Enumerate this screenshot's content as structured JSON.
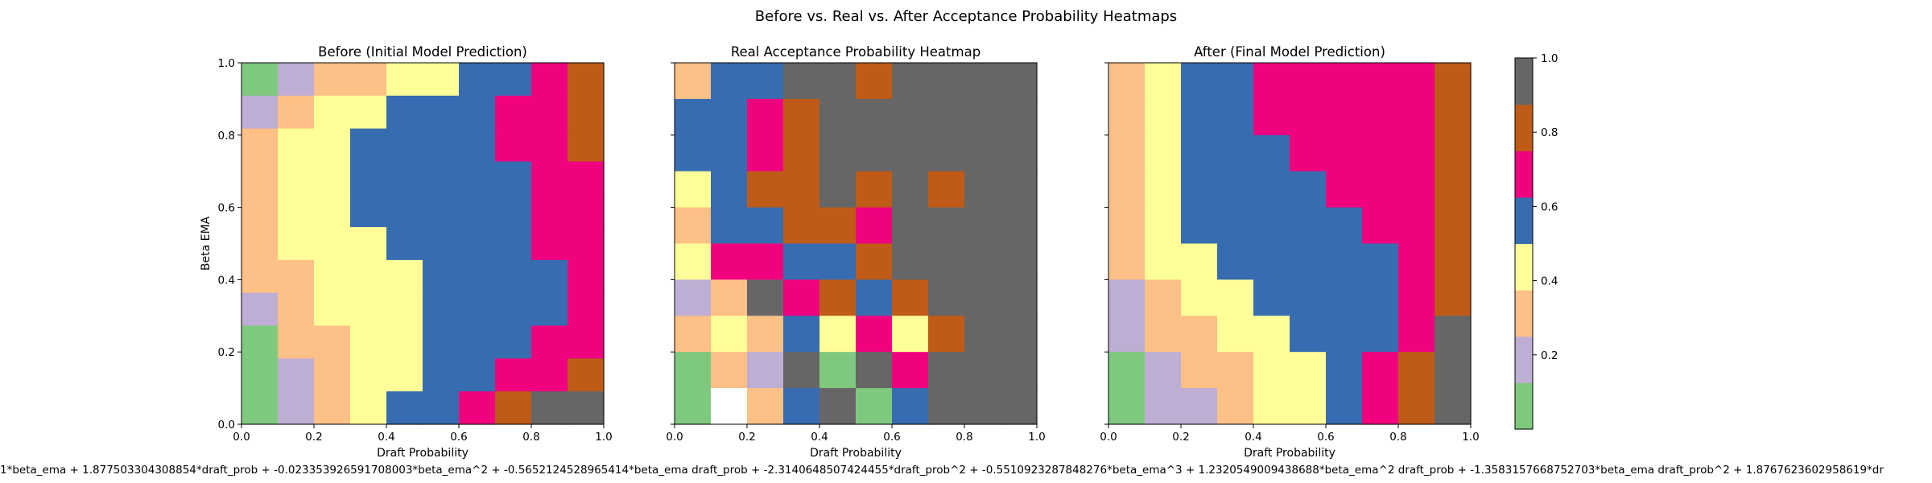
{
  "figure": {
    "title": "Before vs. Real vs. After Acceptance Probability Heatmaps",
    "formula": "1*beta_ema + 1.877503304308854*draft_prob + -0.023353926591708003*beta_ema^2 + -0.5652124528965414*beta_ema draft_prob + -2.3140648507424455*draft_prob^2 + -0.5510923287848276*beta_ema^3 + 1.2320549009438688*beta_ema^2 draft_prob + -1.3583157668752703*beta_ema draft_prob^2 + 1.8767623602958619*dr"
  },
  "colorbar": {
    "colors": [
      "#7fc97f",
      "#beaed4",
      "#fdc086",
      "#ffff99",
      "#386cb0",
      "#f0027f",
      "#bf5b17",
      "#666666"
    ],
    "ticks": [
      "0.2",
      "0.4",
      "0.6",
      "0.8",
      "1.0"
    ],
    "tick_values": [
      0.2,
      0.4,
      0.6,
      0.8,
      1.0
    ],
    "range": [
      0.0,
      1.0
    ]
  },
  "chart_data": [
    {
      "type": "heatmap",
      "title": "Before (Initial Model Prediction)",
      "xlabel": "Draft Probability",
      "ylabel": "Beta EMA",
      "xlim": [
        0,
        1
      ],
      "ylim": [
        0,
        1
      ],
      "xticks": [
        "0.0",
        "0.2",
        "0.4",
        "0.6",
        "0.8",
        "1.0"
      ],
      "yticks": [
        "0.0",
        "0.2",
        "0.4",
        "0.6",
        "0.8",
        "1.0"
      ],
      "rows_top_to_bottom": [
        [
          0,
          1,
          2,
          2,
          3,
          3,
          4,
          4,
          5,
          6
        ],
        [
          1,
          2,
          3,
          3,
          4,
          4,
          4,
          5,
          5,
          6
        ],
        [
          2,
          3,
          3,
          4,
          4,
          4,
          4,
          5,
          5,
          6
        ],
        [
          2,
          3,
          3,
          4,
          4,
          4,
          4,
          4,
          5,
          5
        ],
        [
          2,
          3,
          3,
          4,
          4,
          4,
          4,
          4,
          5,
          5
        ],
        [
          2,
          3,
          3,
          3,
          4,
          4,
          4,
          4,
          5,
          5
        ],
        [
          2,
          2,
          3,
          3,
          3,
          4,
          4,
          4,
          4,
          5
        ],
        [
          1,
          2,
          3,
          3,
          3,
          4,
          4,
          4,
          4,
          5
        ],
        [
          0,
          2,
          2,
          3,
          3,
          4,
          4,
          4,
          5,
          5
        ],
        [
          0,
          1,
          2,
          3,
          3,
          4,
          4,
          5,
          5,
          6
        ],
        [
          0,
          1,
          2,
          3,
          4,
          4,
          5,
          6,
          7,
          7
        ]
      ],
      "cell_value_scale": "class index 0-7 mapped to colorbar bins of 0.125"
    },
    {
      "type": "heatmap",
      "title": "Real Acceptance Probability Heatmap",
      "xlabel": "Draft Probability",
      "ylabel": "",
      "xlim": [
        0,
        1
      ],
      "ylim": [
        0,
        1
      ],
      "xticks": [
        "0.0",
        "0.2",
        "0.4",
        "0.6",
        "0.8",
        "1.0"
      ],
      "yticks": [
        "",
        "",
        "",
        "",
        "",
        ""
      ],
      "rows_top_to_bottom": [
        [
          2,
          4,
          4,
          7,
          7,
          6,
          7,
          7,
          7,
          7
        ],
        [
          4,
          4,
          5,
          6,
          7,
          7,
          7,
          7,
          7,
          7
        ],
        [
          4,
          4,
          5,
          6,
          7,
          7,
          7,
          7,
          7,
          7
        ],
        [
          3,
          4,
          6,
          6,
          7,
          6,
          7,
          6,
          7,
          7
        ],
        [
          2,
          4,
          4,
          6,
          6,
          5,
          7,
          7,
          7,
          7
        ],
        [
          3,
          5,
          5,
          4,
          4,
          6,
          7,
          7,
          7,
          7
        ],
        [
          1,
          2,
          7,
          5,
          6,
          4,
          6,
          7,
          7,
          7
        ],
        [
          2,
          3,
          2,
          4,
          3,
          5,
          3,
          6,
          7,
          7
        ],
        [
          0,
          2,
          1,
          7,
          0,
          7,
          5,
          7,
          7,
          7
        ],
        [
          0,
          -1,
          2,
          4,
          7,
          0,
          4,
          7,
          7,
          7
        ]
      ],
      "cell_value_scale": "class index 0-7 mapped to colorbar bins of 0.125; -1 = missing (white)"
    },
    {
      "type": "heatmap",
      "title": "After (Final Model Prediction)",
      "xlabel": "Draft Probability",
      "ylabel": "",
      "xlim": [
        0,
        1
      ],
      "ylim": [
        0,
        1
      ],
      "xticks": [
        "0.0",
        "0.2",
        "0.4",
        "0.6",
        "0.8",
        "1.0"
      ],
      "yticks": [
        "",
        "",
        "",
        "",
        "",
        ""
      ],
      "rows_top_to_bottom": [
        [
          2,
          3,
          4,
          4,
          5,
          5,
          5,
          5,
          5,
          6
        ],
        [
          2,
          3,
          4,
          4,
          5,
          5,
          5,
          5,
          5,
          6
        ],
        [
          2,
          3,
          4,
          4,
          4,
          5,
          5,
          5,
          5,
          6
        ],
        [
          2,
          3,
          4,
          4,
          4,
          4,
          5,
          5,
          5,
          6
        ],
        [
          2,
          3,
          4,
          4,
          4,
          4,
          4,
          5,
          5,
          6
        ],
        [
          2,
          3,
          3,
          4,
          4,
          4,
          4,
          4,
          5,
          6
        ],
        [
          1,
          2,
          3,
          3,
          4,
          4,
          4,
          4,
          5,
          6
        ],
        [
          1,
          2,
          2,
          3,
          3,
          4,
          4,
          4,
          5,
          7
        ],
        [
          0,
          1,
          2,
          2,
          3,
          3,
          4,
          5,
          6,
          7
        ],
        [
          0,
          1,
          1,
          2,
          3,
          3,
          4,
          5,
          6,
          7
        ]
      ],
      "cell_value_scale": "class index 0-7 mapped to colorbar bins of 0.125"
    }
  ]
}
